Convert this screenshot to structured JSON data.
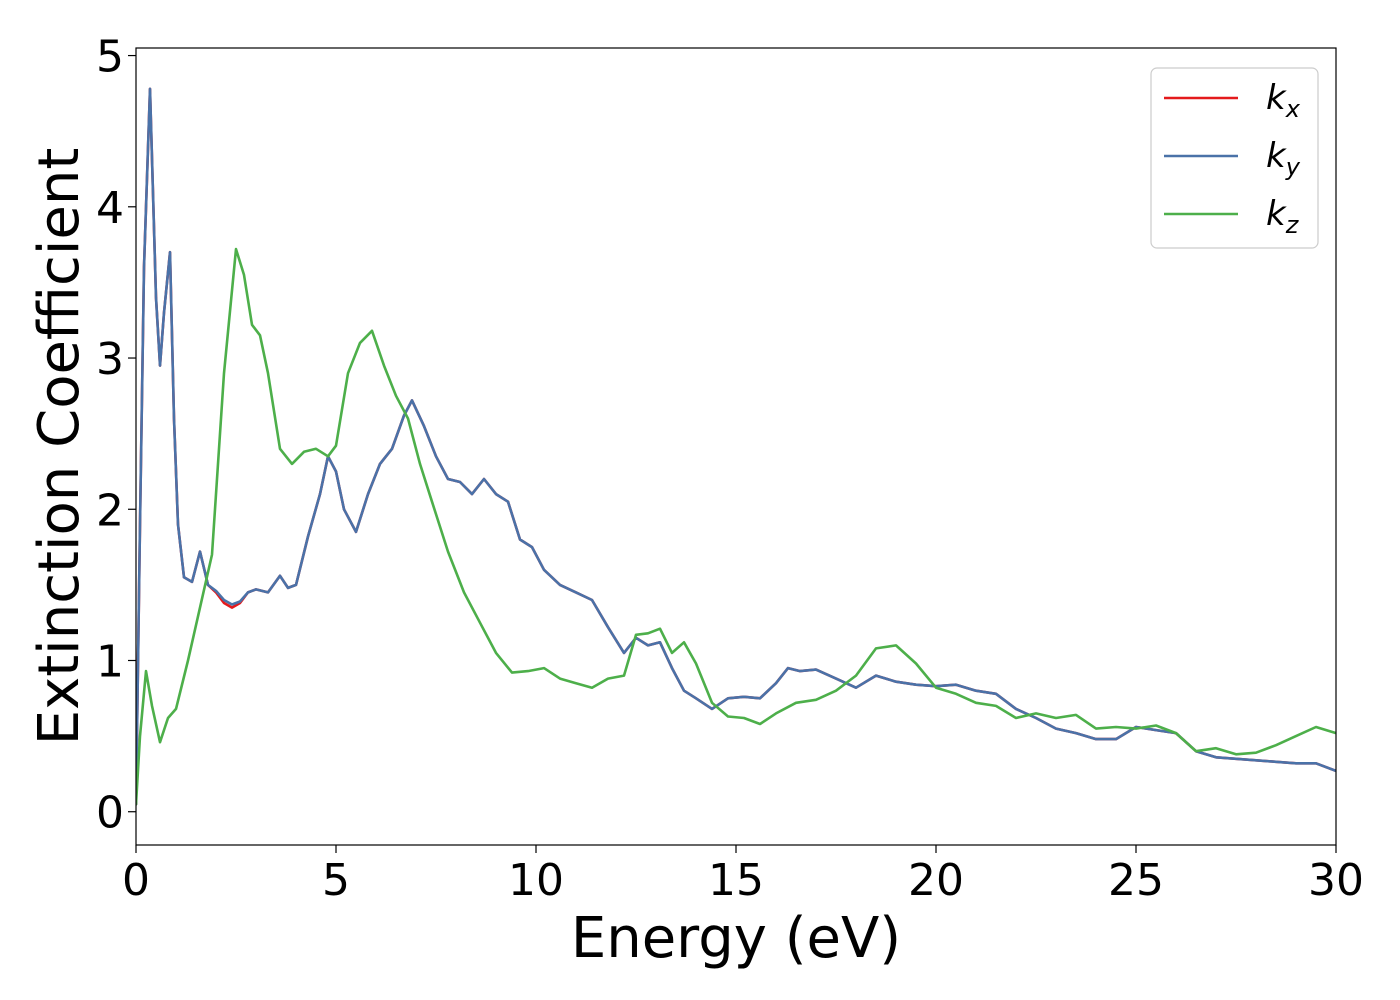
{
  "chart_data": {
    "type": "line",
    "title": "",
    "xlabel": "Energy (eV)",
    "ylabel": "Extinction Coefficient",
    "xlim": [
      0,
      30
    ],
    "ylim": [
      -0.22,
      5.05
    ],
    "xticks": [
      0,
      5,
      10,
      15,
      20,
      25,
      30
    ],
    "yticks": [
      0,
      1,
      2,
      3,
      4,
      5
    ],
    "grid": false,
    "legend_position": "top-right",
    "series": [
      {
        "name": "k",
        "subscript": "x",
        "color": "#e41a1c",
        "x": [
          0,
          0.1,
          0.2,
          0.35,
          0.5,
          0.6,
          0.7,
          0.85,
          0.95,
          1.05,
          1.2,
          1.4,
          1.6,
          1.8,
          2.0,
          2.2,
          2.4,
          2.6,
          2.8,
          3.0,
          3.3,
          3.6,
          3.8,
          4.0,
          4.3,
          4.6,
          4.8,
          5.0,
          5.2,
          5.5,
          5.8,
          6.1,
          6.4,
          6.7,
          6.9,
          7.2,
          7.5,
          7.8,
          8.1,
          8.4,
          8.7,
          9.0,
          9.3,
          9.6,
          9.9,
          10.2,
          10.6,
          11.0,
          11.4,
          11.8,
          12.2,
          12.5,
          12.8,
          13.1,
          13.4,
          13.7,
          14.0,
          14.4,
          14.8,
          15.2,
          15.6,
          16.0,
          16.3,
          16.6,
          17.0,
          17.5,
          18.0,
          18.5,
          19.0,
          19.5,
          20.0,
          20.5,
          21.0,
          21.5,
          22.0,
          22.5,
          23.0,
          23.5,
          24.0,
          24.5,
          25.0,
          25.5,
          26.0,
          26.5,
          27.0,
          27.5,
          28.0,
          28.5,
          29.0,
          29.5,
          30.0
        ],
        "y": [
          0.05,
          1.9,
          3.6,
          4.78,
          3.4,
          2.95,
          3.3,
          3.7,
          2.6,
          1.9,
          1.55,
          1.52,
          1.72,
          1.5,
          1.45,
          1.38,
          1.35,
          1.38,
          1.45,
          1.47,
          1.45,
          1.56,
          1.48,
          1.5,
          1.82,
          2.1,
          2.35,
          2.25,
          2.0,
          1.85,
          2.1,
          2.3,
          2.4,
          2.62,
          2.72,
          2.55,
          2.35,
          2.2,
          2.18,
          2.1,
          2.2,
          2.1,
          2.05,
          1.8,
          1.75,
          1.6,
          1.5,
          1.45,
          1.4,
          1.22,
          1.05,
          1.15,
          1.1,
          1.12,
          0.95,
          0.8,
          0.75,
          0.68,
          0.75,
          0.76,
          0.75,
          0.85,
          0.95,
          0.93,
          0.94,
          0.88,
          0.82,
          0.9,
          0.86,
          0.84,
          0.83,
          0.84,
          0.8,
          0.78,
          0.68,
          0.62,
          0.55,
          0.52,
          0.48,
          0.48,
          0.56,
          0.54,
          0.52,
          0.4,
          0.36,
          0.35,
          0.34,
          0.33,
          0.32,
          0.32,
          0.27
        ]
      },
      {
        "name": "k",
        "subscript": "y",
        "color": "#4a72a8",
        "x": [
          0,
          0.1,
          0.2,
          0.35,
          0.5,
          0.6,
          0.7,
          0.85,
          0.95,
          1.05,
          1.2,
          1.4,
          1.6,
          1.8,
          2.0,
          2.2,
          2.4,
          2.6,
          2.8,
          3.0,
          3.3,
          3.6,
          3.8,
          4.0,
          4.3,
          4.6,
          4.8,
          5.0,
          5.2,
          5.5,
          5.8,
          6.1,
          6.4,
          6.7,
          6.9,
          7.2,
          7.5,
          7.8,
          8.1,
          8.4,
          8.7,
          9.0,
          9.3,
          9.6,
          9.9,
          10.2,
          10.6,
          11.0,
          11.4,
          11.8,
          12.2,
          12.5,
          12.8,
          13.1,
          13.4,
          13.7,
          14.0,
          14.4,
          14.8,
          15.2,
          15.6,
          16.0,
          16.3,
          16.6,
          17.0,
          17.5,
          18.0,
          18.5,
          19.0,
          19.5,
          20.0,
          20.5,
          21.0,
          21.5,
          22.0,
          22.5,
          23.0,
          23.5,
          24.0,
          24.5,
          25.0,
          25.5,
          26.0,
          26.5,
          27.0,
          27.5,
          28.0,
          28.5,
          29.0,
          29.5,
          30.0
        ],
        "y": [
          0.05,
          1.9,
          3.6,
          4.78,
          3.4,
          2.95,
          3.3,
          3.7,
          2.6,
          1.9,
          1.55,
          1.52,
          1.72,
          1.5,
          1.46,
          1.4,
          1.37,
          1.39,
          1.45,
          1.47,
          1.45,
          1.56,
          1.48,
          1.5,
          1.82,
          2.1,
          2.35,
          2.25,
          2.0,
          1.85,
          2.1,
          2.3,
          2.4,
          2.62,
          2.72,
          2.55,
          2.35,
          2.2,
          2.18,
          2.1,
          2.2,
          2.1,
          2.05,
          1.8,
          1.75,
          1.6,
          1.5,
          1.45,
          1.4,
          1.22,
          1.05,
          1.15,
          1.1,
          1.12,
          0.95,
          0.8,
          0.75,
          0.68,
          0.75,
          0.76,
          0.75,
          0.85,
          0.95,
          0.93,
          0.94,
          0.88,
          0.82,
          0.9,
          0.86,
          0.84,
          0.83,
          0.84,
          0.8,
          0.78,
          0.68,
          0.62,
          0.55,
          0.52,
          0.48,
          0.48,
          0.56,
          0.54,
          0.52,
          0.4,
          0.36,
          0.35,
          0.34,
          0.33,
          0.32,
          0.32,
          0.27
        ]
      },
      {
        "name": "k",
        "subscript": "z",
        "color": "#4daf4a",
        "x": [
          0,
          0.1,
          0.25,
          0.4,
          0.6,
          0.8,
          1.0,
          1.3,
          1.6,
          1.9,
          2.2,
          2.5,
          2.7,
          2.9,
          3.1,
          3.3,
          3.6,
          3.9,
          4.2,
          4.5,
          4.8,
          5.0,
          5.3,
          5.6,
          5.9,
          6.2,
          6.5,
          6.8,
          7.1,
          7.4,
          7.8,
          8.2,
          8.6,
          9.0,
          9.4,
          9.8,
          10.2,
          10.6,
          11.0,
          11.4,
          11.8,
          12.2,
          12.5,
          12.8,
          13.1,
          13.4,
          13.7,
          14.0,
          14.4,
          14.8,
          15.2,
          15.6,
          16.0,
          16.5,
          17.0,
          17.5,
          18.0,
          18.5,
          19.0,
          19.5,
          20.0,
          20.5,
          21.0,
          21.5,
          22.0,
          22.5,
          23.0,
          23.5,
          24.0,
          24.5,
          25.0,
          25.5,
          26.0,
          26.5,
          27.0,
          27.5,
          28.0,
          28.5,
          29.0,
          29.5,
          30.0
        ],
        "y": [
          0.05,
          0.5,
          0.93,
          0.7,
          0.46,
          0.62,
          0.68,
          1.0,
          1.35,
          1.7,
          2.9,
          3.72,
          3.55,
          3.22,
          3.15,
          2.9,
          2.4,
          2.3,
          2.38,
          2.4,
          2.35,
          2.42,
          2.9,
          3.1,
          3.18,
          2.95,
          2.75,
          2.6,
          2.3,
          2.05,
          1.72,
          1.45,
          1.25,
          1.05,
          0.92,
          0.93,
          0.95,
          0.88,
          0.85,
          0.82,
          0.88,
          0.9,
          1.17,
          1.18,
          1.21,
          1.05,
          1.12,
          0.98,
          0.72,
          0.63,
          0.62,
          0.58,
          0.65,
          0.72,
          0.74,
          0.8,
          0.9,
          1.08,
          1.1,
          0.98,
          0.82,
          0.78,
          0.72,
          0.7,
          0.62,
          0.65,
          0.62,
          0.64,
          0.55,
          0.56,
          0.55,
          0.57,
          0.52,
          0.4,
          0.42,
          0.38,
          0.39,
          0.44,
          0.5,
          0.56,
          0.52
        ]
      }
    ]
  }
}
